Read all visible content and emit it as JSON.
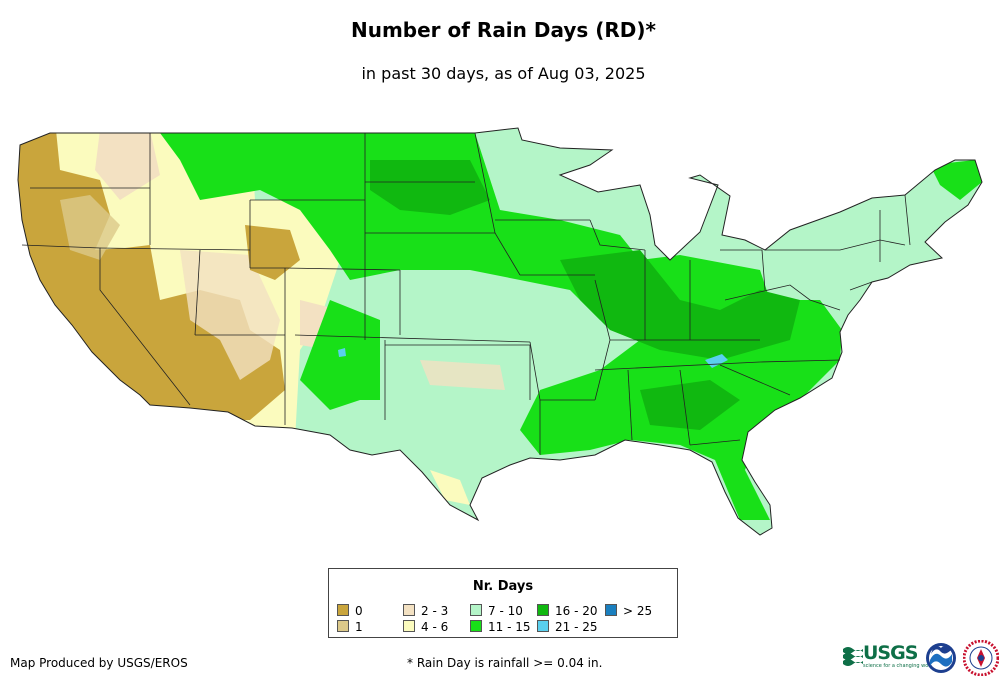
{
  "title": "Number of Rain Days (RD)*",
  "subtitle": "in past 30 days, as of Aug 03, 2025",
  "legend": {
    "title": "Nr. Days",
    "items": [
      {
        "label": "0",
        "color": "#c9a53c"
      },
      {
        "label": "1",
        "color": "#dcc98a"
      },
      {
        "label": "2 - 3",
        "color": "#f3e1c2"
      },
      {
        "label": "4 - 6",
        "color": "#fbfbbe"
      },
      {
        "label": "7 - 10",
        "color": "#b4f5c8"
      },
      {
        "label": "11 - 15",
        "color": "#18e018"
      },
      {
        "label": "16 - 20",
        "color": "#10b810"
      },
      {
        "label": "21 - 25",
        "color": "#5ad0ee"
      },
      {
        "label": "> 25",
        "color": "#1a7fbf"
      }
    ]
  },
  "credit": "Map Produced by USGS/EROS",
  "footnote": "* Rain Day is rainfall >= 0.04 in.",
  "logos": {
    "usgs_text": "USGS",
    "usgs_tagline": "science for a changing world"
  }
}
